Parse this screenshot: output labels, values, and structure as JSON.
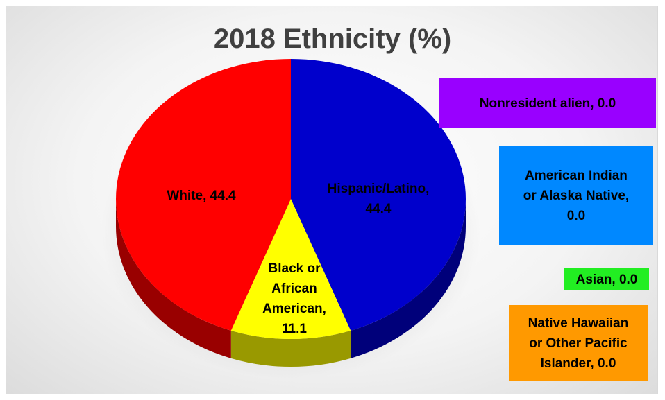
{
  "chart_data": {
    "type": "pie",
    "title": "2018 Ethnicity (%)",
    "slices": [
      {
        "label": "Hispanic/Latino",
        "value": 44.4,
        "color": "#0000cc",
        "text": "Hispanic/Latino, 44.4"
      },
      {
        "label": "Black or African American",
        "value": 11.1,
        "color": "#ffff00",
        "text": "Black or African American, 11.1"
      },
      {
        "label": "White",
        "value": 44.4,
        "color": "#ff0000",
        "text": "White, 44.4"
      },
      {
        "label": "Nonresident alien",
        "value": 0.0,
        "color": "#9900ff",
        "text": "Nonresident alien, 0.0"
      },
      {
        "label": "American Indian or Alaska Native",
        "value": 0.0,
        "color": "#0088ff",
        "text": "American Indian or Alaska Native, 0.0"
      },
      {
        "label": "Asian",
        "value": 0.0,
        "color": "#22ee22",
        "text": "Asian, 0.0"
      },
      {
        "label": "Native Hawaiian or Other Pacific Islander",
        "value": 0.0,
        "color": "#ff9900",
        "text": "Native Hawaiian or Other Pacific Islander, 0.0"
      }
    ],
    "data_labels": {
      "hispanic": [
        "Hispanic/Latino,",
        "44.4"
      ],
      "black": [
        "Black or",
        "African",
        "American,",
        "11.1"
      ],
      "white": [
        "White, 44.4"
      ]
    },
    "callouts": {
      "nonresident": [
        "Nonresident alien, 0.0"
      ],
      "american_indian": [
        "American Indian",
        "or Alaska Native,",
        "0.0"
      ],
      "asian": [
        "Asian, 0.0"
      ],
      "native_hawaiian": [
        "Native Hawaiian",
        "or Other Pacific",
        "Islander, 0.0"
      ]
    },
    "legend": "none"
  }
}
